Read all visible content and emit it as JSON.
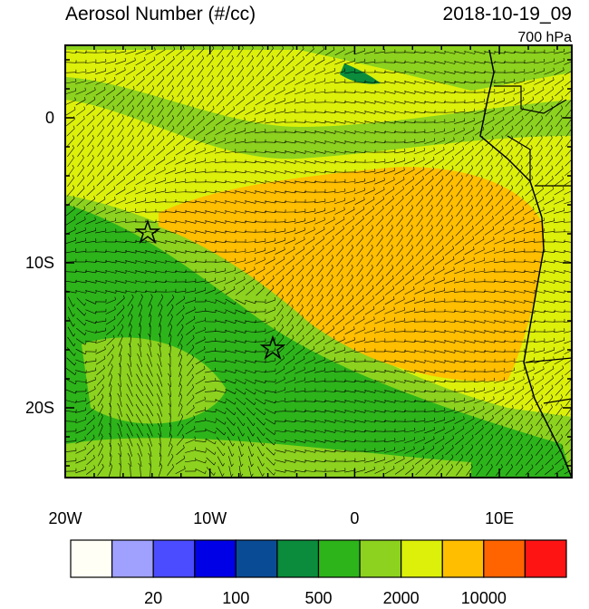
{
  "title": "Aerosol Number (#/cc)",
  "date": "2018-10-19_09",
  "level": "700 hPa",
  "x_axis": {
    "ticks": [
      "20W",
      "10W",
      "0",
      "10E"
    ]
  },
  "y_axis": {
    "ticks": [
      "0",
      "10S",
      "20S"
    ]
  },
  "colorbar": {
    "colors": [
      "#fffff5",
      "#a0a0ff",
      "#4b4bff",
      "#0000e6",
      "#0a4b96",
      "#0a8c3c",
      "#2db41a",
      "#8cd21e",
      "#dcf00a",
      "#ffbe00",
      "#ff6400",
      "#ff1414"
    ],
    "labels": [
      "20",
      "100",
      "500",
      "2000",
      "10000"
    ]
  }
}
